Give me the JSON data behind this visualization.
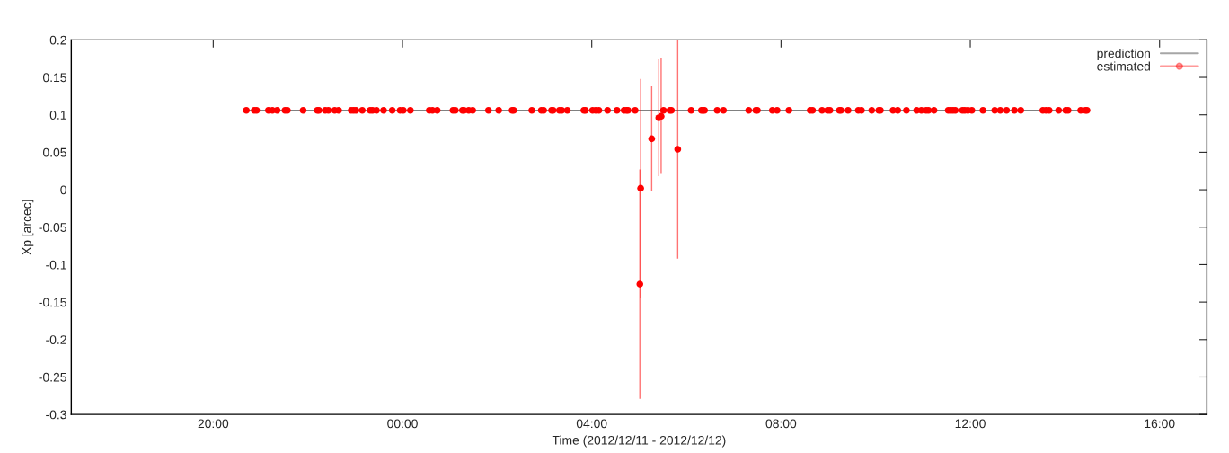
{
  "chart_data": {
    "type": "scatter",
    "xlabel": "Time (2012/12/11 - 2012/12/12)",
    "ylabel": "Xp [arcec]",
    "xlim": [
      "2012-12-11T17:00",
      "2012-12-12T17:00"
    ],
    "xticks": [
      {
        "value": "2012-12-11T20:00",
        "label": "20:00"
      },
      {
        "value": "2012-12-12T00:00",
        "label": "00:00"
      },
      {
        "value": "2012-12-12T04:00",
        "label": "04:00"
      },
      {
        "value": "2012-12-12T08:00",
        "label": "08:00"
      },
      {
        "value": "2012-12-12T12:00",
        "label": "12:00"
      },
      {
        "value": "2012-12-12T16:00",
        "label": "16:00"
      }
    ],
    "ylim": [
      -0.3,
      0.2
    ],
    "yticks": [
      -0.3,
      -0.25,
      -0.2,
      -0.15,
      -0.1,
      -0.05,
      0,
      0.05,
      0.1,
      0.15,
      0.2
    ],
    "legend": "top right",
    "grid": false,
    "series": [
      {
        "name": "prediction",
        "type": "line",
        "color": "#808080",
        "marker": "none",
        "x": [
          "2012-12-11T20:42",
          "2012-12-12T14:28"
        ],
        "values": [
          0.106,
          0.106
        ]
      },
      {
        "name": "estimated",
        "color": "#ff0000",
        "marker": "circle",
        "x": [
          "2012-12-11T20:42",
          "2012-12-11T20:52",
          "2012-12-11T20:55",
          "2012-12-11T21:10",
          "2012-12-11T21:15",
          "2012-12-11T21:21",
          "2012-12-11T21:31",
          "2012-12-11T21:34",
          "2012-12-11T21:54",
          "2012-12-11T22:12",
          "2012-12-11T22:14",
          "2012-12-11T22:22",
          "2012-12-11T22:26",
          "2012-12-11T22:34",
          "2012-12-11T22:39",
          "2012-12-11T22:55",
          "2012-12-11T22:58",
          "2012-12-11T23:01",
          "2012-12-11T23:09",
          "2012-12-11T23:19",
          "2012-12-11T23:22",
          "2012-12-11T23:27",
          "2012-12-11T23:36",
          "2012-12-11T23:47",
          "2012-12-11T23:57",
          "2012-12-12T00:01",
          "2012-12-12T00:10",
          "2012-12-12T00:34",
          "2012-12-12T00:38",
          "2012-12-12T00:44",
          "2012-12-12T01:04",
          "2012-12-12T01:07",
          "2012-12-12T01:16",
          "2012-12-12T01:18",
          "2012-12-12T01:24",
          "2012-12-12T01:29",
          "2012-12-12T01:49",
          "2012-12-12T02:02",
          "2012-12-12T02:19",
          "2012-12-12T02:21",
          "2012-12-12T02:44",
          "2012-12-12T02:56",
          "2012-12-12T02:59",
          "2012-12-12T03:09",
          "2012-12-12T03:11",
          "2012-12-12T03:19",
          "2012-12-12T03:22",
          "2012-12-12T03:29",
          "2012-12-12T03:50",
          "2012-12-12T03:52",
          "2012-12-12T04:01",
          "2012-12-12T04:05",
          "2012-12-12T04:09",
          "2012-12-12T04:20",
          "2012-12-12T04:32",
          "2012-12-12T04:41",
          "2012-12-12T04:44",
          "2012-12-12T04:46",
          "2012-12-12T04:55",
          "2012-12-12T05:01",
          "2012-12-12T05:02",
          "2012-12-12T05:16",
          "2012-12-12T05:25",
          "2012-12-12T05:28",
          "2012-12-12T05:31",
          "2012-12-12T05:39",
          "2012-12-12T05:41",
          "2012-12-12T05:49",
          "2012-12-12T06:06",
          "2012-12-12T06:19",
          "2012-12-12T06:21",
          "2012-12-12T06:23",
          "2012-12-12T06:39",
          "2012-12-12T06:47",
          "2012-12-12T07:19",
          "2012-12-12T07:28",
          "2012-12-12T07:30",
          "2012-12-12T07:49",
          "2012-12-12T07:55",
          "2012-12-12T08:10",
          "2012-12-12T08:37",
          "2012-12-12T08:40",
          "2012-12-12T08:52",
          "2012-12-12T08:59",
          "2012-12-12T09:02",
          "2012-12-12T09:14",
          "2012-12-12T09:16",
          "2012-12-12T09:25",
          "2012-12-12T09:38",
          "2012-12-12T09:42",
          "2012-12-12T09:55",
          "2012-12-12T10:04",
          "2012-12-12T10:06",
          "2012-12-12T10:22",
          "2012-12-12T10:28",
          "2012-12-12T10:39",
          "2012-12-12T10:52",
          "2012-12-12T10:58",
          "2012-12-12T11:04",
          "2012-12-12T11:07",
          "2012-12-12T11:14",
          "2012-12-12T11:32",
          "2012-12-12T11:35",
          "2012-12-12T11:38",
          "2012-12-12T11:41",
          "2012-12-12T11:50",
          "2012-12-12T11:53",
          "2012-12-12T11:57",
          "2012-12-12T12:02",
          "2012-12-12T12:16",
          "2012-12-12T12:31",
          "2012-12-12T12:38",
          "2012-12-12T12:46",
          "2012-12-12T12:56",
          "2012-12-12T13:04",
          "2012-12-12T13:32",
          "2012-12-12T13:36",
          "2012-12-12T13:40",
          "2012-12-12T13:52",
          "2012-12-12T14:01",
          "2012-12-12T14:04",
          "2012-12-12T14:20",
          "2012-12-12T14:26",
          "2012-12-12T14:28"
        ],
        "values": [
          0.106,
          0.106,
          0.106,
          0.106,
          0.106,
          0.106,
          0.106,
          0.106,
          0.106,
          0.106,
          0.106,
          0.106,
          0.106,
          0.106,
          0.106,
          0.106,
          0.106,
          0.106,
          0.106,
          0.106,
          0.106,
          0.106,
          0.106,
          0.106,
          0.106,
          0.106,
          0.106,
          0.106,
          0.106,
          0.106,
          0.106,
          0.106,
          0.106,
          0.106,
          0.106,
          0.106,
          0.106,
          0.106,
          0.106,
          0.106,
          0.106,
          0.106,
          0.106,
          0.106,
          0.106,
          0.106,
          0.106,
          0.106,
          0.106,
          0.106,
          0.106,
          0.106,
          0.106,
          0.106,
          0.106,
          0.106,
          0.106,
          0.106,
          0.106,
          -0.126,
          0.002,
          0.068,
          0.096,
          0.098,
          0.106,
          0.106,
          0.106,
          0.054,
          0.106,
          0.106,
          0.106,
          0.106,
          0.106,
          0.106,
          0.106,
          0.106,
          0.106,
          0.106,
          0.106,
          0.106,
          0.106,
          0.106,
          0.106,
          0.106,
          0.106,
          0.106,
          0.106,
          0.106,
          0.106,
          0.106,
          0.106,
          0.106,
          0.106,
          0.106,
          0.106,
          0.106,
          0.106,
          0.106,
          0.106,
          0.106,
          0.106,
          0.106,
          0.106,
          0.106,
          0.106,
          0.106,
          0.106,
          0.106,
          0.106,
          0.106,
          0.106,
          0.106,
          0.106,
          0.106,
          0.106,
          0.106,
          0.106,
          0.106,
          0.106,
          0.106,
          0.106,
          0.106,
          0.106,
          0.106
        ],
        "errors": [
          null,
          null,
          null,
          null,
          null,
          null,
          null,
          null,
          null,
          null,
          null,
          null,
          null,
          null,
          null,
          null,
          null,
          null,
          null,
          null,
          null,
          null,
          null,
          null,
          null,
          null,
          null,
          null,
          null,
          null,
          null,
          null,
          null,
          null,
          null,
          null,
          null,
          null,
          null,
          null,
          null,
          null,
          null,
          null,
          null,
          null,
          null,
          null,
          null,
          null,
          null,
          null,
          null,
          null,
          null,
          null,
          null,
          null,
          null,
          [
            -0.279,
            0.027
          ],
          [
            -0.144,
            0.148
          ],
          [
            -0.002,
            0.138
          ],
          [
            0.018,
            0.174
          ],
          [
            0.021,
            0.176
          ],
          null,
          null,
          null,
          [
            -0.092,
            0.2
          ],
          null,
          null,
          null,
          null,
          null,
          null,
          null,
          null,
          null,
          null,
          null,
          null,
          null,
          null,
          null,
          null,
          null,
          null,
          null,
          null,
          null,
          null,
          null,
          null,
          null,
          null,
          null,
          null,
          null,
          null,
          null,
          null,
          null,
          null,
          null,
          null,
          null,
          null,
          null,
          null,
          null,
          null,
          null,
          null,
          null,
          null,
          null,
          null,
          null,
          null,
          null,
          null,
          null,
          null,
          null,
          null
        ]
      }
    ]
  }
}
